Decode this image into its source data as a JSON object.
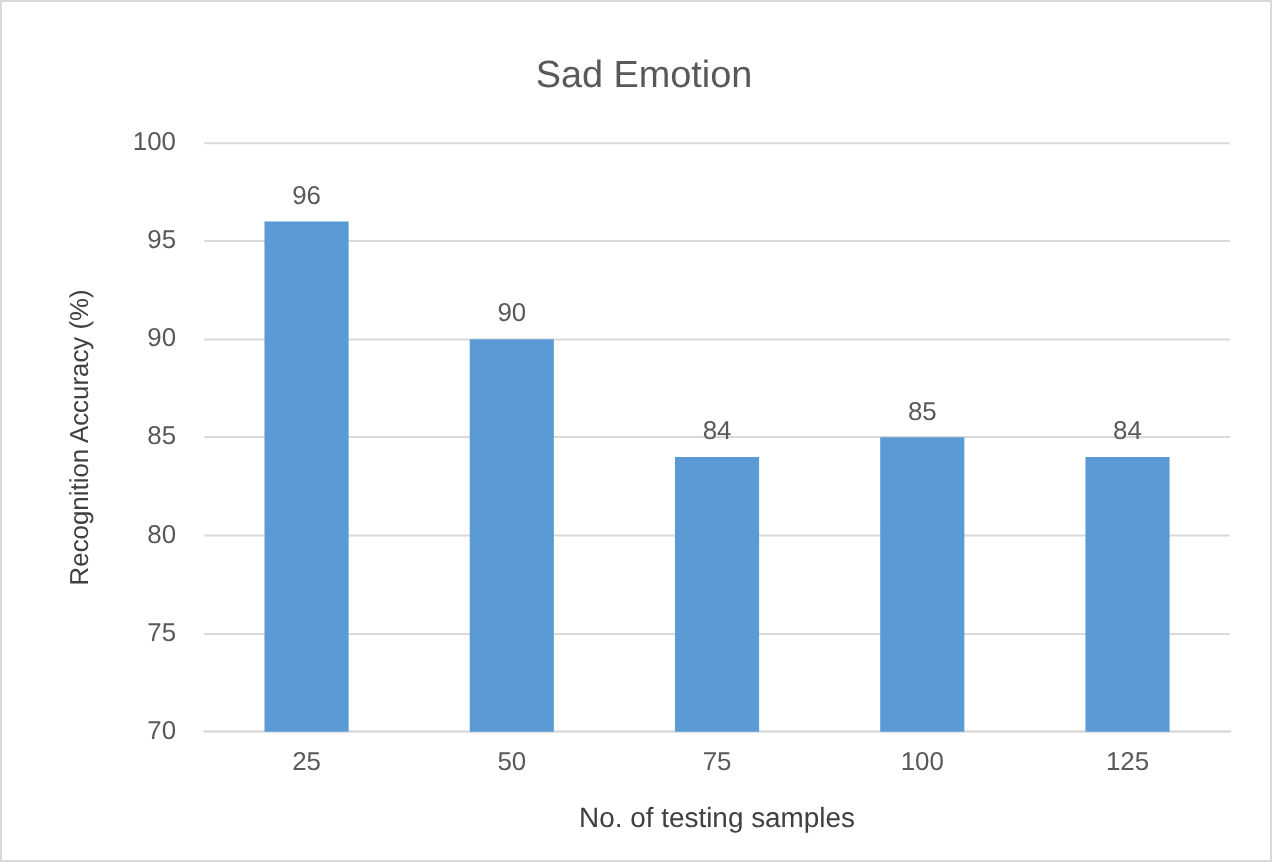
{
  "chart_data": {
    "type": "bar",
    "title": "Sad Emotion",
    "xlabel": "No. of testing samples",
    "ylabel": "Recognition Accuracy (%)",
    "categories": [
      "25",
      "50",
      "75",
      "100",
      "125"
    ],
    "values": [
      96,
      90,
      84,
      85,
      84
    ],
    "color": "#5b9bd5",
    "ylim": [
      70,
      100
    ],
    "yticks": [
      70,
      75,
      80,
      85,
      90,
      95,
      100
    ],
    "grid": "y",
    "data_labels": true
  }
}
